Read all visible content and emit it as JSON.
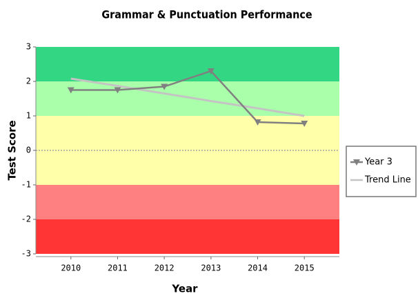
{
  "chart_data": {
    "type": "line",
    "title": "Grammar & Punctuation Performance",
    "xlabel": "Year",
    "ylabel": "Test Score",
    "x": [
      2010,
      2011,
      2012,
      2013,
      2014,
      2015
    ],
    "series": [
      {
        "name": "Year 3",
        "color": "#808080",
        "marker": "triangle-down",
        "values": [
          1.75,
          1.75,
          1.85,
          2.3,
          0.82,
          0.78
        ]
      },
      {
        "name": "Trend Line",
        "color": "#c4c4c4",
        "marker": "none",
        "values": [
          2.08,
          1.87,
          1.65,
          1.43,
          1.22,
          1.0
        ]
      }
    ],
    "xlim": [
      2009.25,
      2015.75
    ],
    "xticks": [
      2010,
      2011,
      2012,
      2013,
      2014,
      2015
    ],
    "ylim": [
      -3,
      3
    ],
    "yticks": [
      3,
      2,
      1,
      0,
      -1,
      -2,
      -3
    ],
    "bands": [
      {
        "from": 2,
        "to": 3,
        "color": "#33d682"
      },
      {
        "from": 1,
        "to": 2,
        "color": "#aaffaa"
      },
      {
        "from": -1,
        "to": 1,
        "color": "#ffffaa"
      },
      {
        "from": -2,
        "to": -1,
        "color": "#ff8080"
      },
      {
        "from": -3,
        "to": -2,
        "color": "#ff3535"
      }
    ],
    "zero_line": true,
    "legend": "right"
  }
}
